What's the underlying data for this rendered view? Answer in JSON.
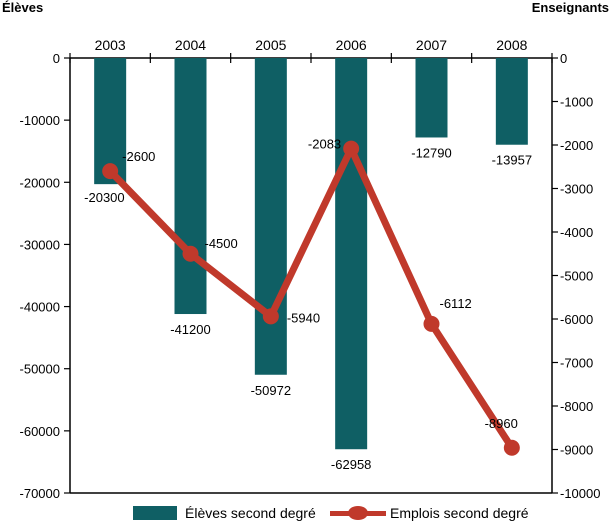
{
  "chart_data": {
    "type": "bar",
    "categories": [
      "2003",
      "2004",
      "2005",
      "2006",
      "2007",
      "2008"
    ],
    "left_axis_label": "Élèves",
    "right_axis_label": "Enseignants",
    "left_ylim": [
      -70000,
      0
    ],
    "left_ticks": [
      0,
      -10000,
      -20000,
      -30000,
      -40000,
      -50000,
      -60000,
      -70000
    ],
    "left_tick_labels": [
      "0",
      "-10000",
      "-20000",
      "-30000",
      "-40000",
      "-50000",
      "-60000",
      "-70000"
    ],
    "right_ylim": [
      -10000,
      0
    ],
    "right_ticks": [
      0,
      -1000,
      -2000,
      -3000,
      -4000,
      -5000,
      -6000,
      -7000,
      -8000,
      -9000,
      -10000
    ],
    "right_tick_labels": [
      "0",
      "-1000",
      "-2000",
      "-3000",
      "-4000",
      "-5000",
      "-6000",
      "-7000",
      "-8000",
      "-9000",
      "-10000"
    ],
    "series": [
      {
        "name": "Élèves second degré",
        "kind": "bar",
        "axis": "left",
        "color": "#0f5f64",
        "values": [
          -20300,
          -41200,
          -50972,
          -62958,
          -12790,
          -13957
        ],
        "labels": [
          "-20300",
          "-41200",
          "-50972",
          "-62958",
          "-12790",
          "-13957"
        ]
      },
      {
        "name": "Emplois second degré",
        "kind": "line",
        "axis": "right",
        "color": "#c0392b",
        "values": [
          -2600,
          -4500,
          -5940,
          -2083,
          -6112,
          -8960
        ],
        "labels": [
          "-2600",
          "-4500",
          "-5940",
          "-2083",
          "-6112",
          "-8960"
        ]
      }
    ],
    "legend_position": "bottom",
    "grid": false
  }
}
